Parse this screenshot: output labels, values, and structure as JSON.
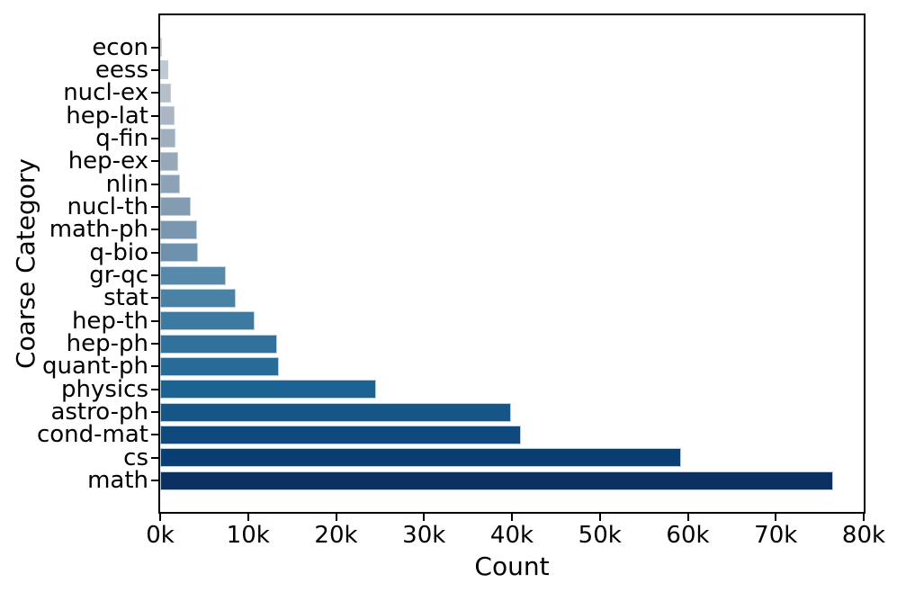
{
  "figure": {
    "background_color": "#ffffff",
    "spine_color": "#000000",
    "tick_color": "#000000",
    "text_color": "#000000"
  },
  "chart_data": {
    "type": "bar",
    "orientation": "horizontal",
    "title": "",
    "xlabel": "Count",
    "ylabel": "Coarse Category",
    "grid": false,
    "legend": null,
    "xlim": [
      0,
      80000
    ],
    "x_tick_labels": [
      "0k",
      "10k",
      "20k",
      "30k",
      "40k",
      "50k",
      "60k",
      "70k",
      "80k"
    ],
    "x_tick_values": [
      0,
      10000,
      20000,
      30000,
      40000,
      50000,
      60000,
      70000,
      80000
    ],
    "categories": [
      "econ",
      "eess",
      "nucl-ex",
      "hep-lat",
      "q-fin",
      "hep-ex",
      "nlin",
      "nucl-th",
      "math-ph",
      "q-bio",
      "gr-qc",
      "stat",
      "hep-th",
      "hep-ph",
      "quant-ph",
      "physics",
      "astro-ph",
      "cond-mat",
      "cs",
      "math"
    ],
    "values": [
      200,
      900,
      1200,
      1600,
      1700,
      2000,
      2200,
      3500,
      4200,
      4250,
      7500,
      8600,
      10700,
      13300,
      13500,
      24600,
      39900,
      41000,
      59200,
      76500
    ],
    "bar_colors": [
      "#ccd2d8",
      "#c1c8cf",
      "#b6bec7",
      "#abb6c2",
      "#a1afbd",
      "#97a9b9",
      "#8da3b5",
      "#839cb2",
      "#7a97af",
      "#6e92ad",
      "#5789aa",
      "#4a82a6",
      "#3d7aa2",
      "#31729d",
      "#276b98",
      "#1c6292",
      "#165687",
      "#104a7c",
      "#093e72",
      "#0a3161"
    ],
    "bar_edge_color": "#b9d0e1",
    "colormap_note": "light-gray-blue to dark-navy gradient, one shade per category"
  }
}
